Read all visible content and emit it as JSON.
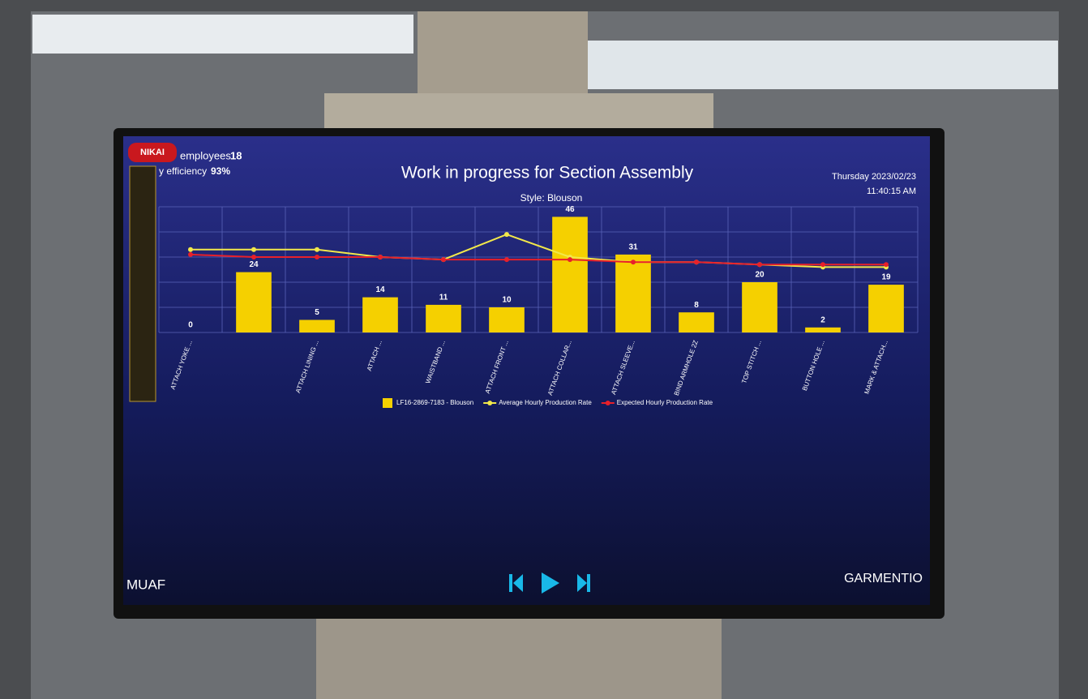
{
  "header": {
    "brand": "NIKAI",
    "employees_label": "employees",
    "employees": "18",
    "efficiency_label": "y efficiency",
    "efficiency": "93%",
    "date": "Thursday 2023/02/23",
    "time": "11:40:15 AM"
  },
  "chart_data": {
    "type": "bar",
    "title": "Work in progress for Section Assembly",
    "subtitle": "Style: Blouson",
    "categories": [
      "ATTACH YOKE ...",
      null,
      "ATTACH LINING ...",
      "ATTACH ...",
      "WAISTBAND ...",
      "ATTACH FRONT ...",
      "ATTACH COLLAR...",
      "ATTACH SLEEVE...",
      "BIND ARMHOLE 2Z",
      "TOP STITCH ...",
      "BUTTON HOLE ...",
      "MARK & ATTACH..."
    ],
    "series": [
      {
        "name": "LF16-2869-7183 - Blouson",
        "type": "bar",
        "color": "#f5d000",
        "values": [
          0,
          24,
          5,
          14,
          11,
          10,
          46,
          31,
          8,
          20,
          2,
          19
        ]
      },
      {
        "name": "Average Hourly Production Rate",
        "type": "line",
        "color": "#f2e84a",
        "values": [
          33,
          33,
          33,
          30,
          29,
          39,
          30,
          28,
          28,
          27,
          26,
          26
        ]
      },
      {
        "name": "Expected Hourly Production Rate",
        "type": "line",
        "color": "#e8202a",
        "values": [
          31,
          30,
          30,
          30,
          29,
          29,
          29,
          28,
          28,
          27,
          27,
          27
        ]
      }
    ],
    "ylim": [
      0,
      50
    ],
    "grid": true,
    "legend": "bottom"
  },
  "footer": {
    "left": "MUAF",
    "right": "GARMENTIO"
  }
}
